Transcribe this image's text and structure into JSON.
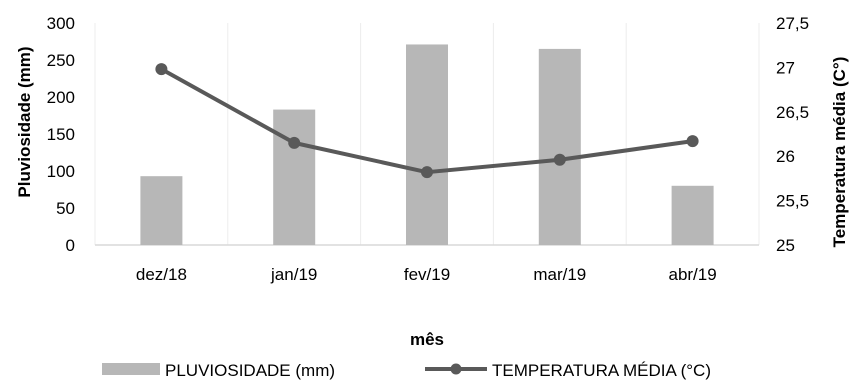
{
  "chart_data": {
    "type": "bar",
    "categories": [
      "dez/18",
      "jan/19",
      "fev/19",
      "mar/19",
      "abr/19"
    ],
    "series": [
      {
        "name": "PLUVIOSIDADE (mm)",
        "type": "bar",
        "axis": "left",
        "color": "#b7b7b7",
        "values": [
          93,
          183,
          271,
          265,
          80
        ]
      },
      {
        "name": "TEMPERATURA MÉDIA (°C)",
        "type": "line",
        "axis": "right",
        "color": "#595959",
        "values": [
          26.98,
          26.15,
          25.82,
          25.96,
          26.17
        ]
      }
    ],
    "xlabel": "mês",
    "ylabel": "Pluviosidade (mm)",
    "y2label": "Temperatura média (C°)",
    "ylim": [
      0,
      300
    ],
    "y2lim": [
      25,
      27.5
    ],
    "yticks": [
      "0",
      "50",
      "100",
      "150",
      "200",
      "250",
      "300"
    ],
    "y2ticks": [
      "25",
      "25,5",
      "26",
      "26,5",
      "27",
      "27,5"
    ],
    "grid": "vertical category dividers",
    "legend": "bottom"
  }
}
